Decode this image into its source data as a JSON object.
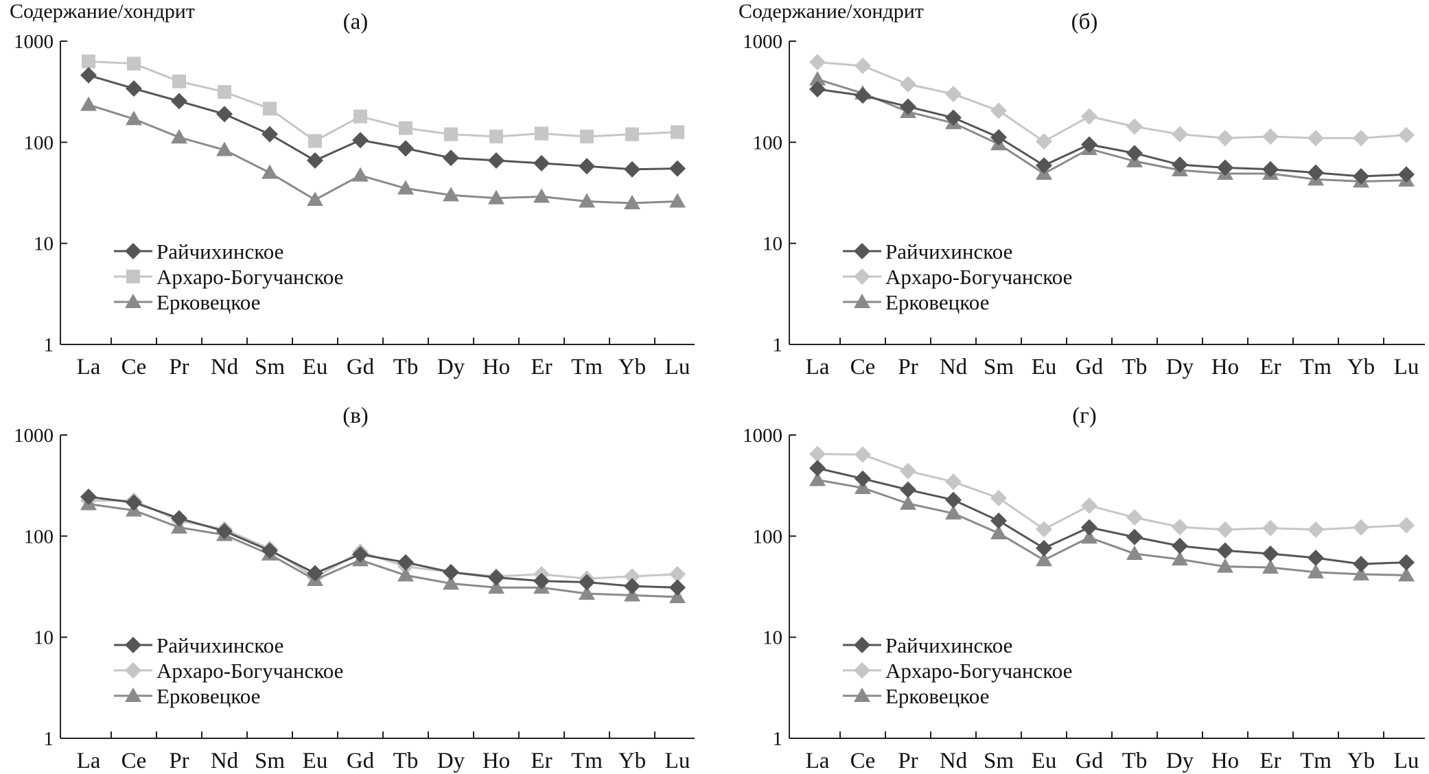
{
  "ylabel": "Содержание/хондрит",
  "colors": {
    "Райчихинское": "#555555",
    "Архаро-Богучанское": "#c6c6c6",
    "Ерковецкое": "#8a8a8a"
  },
  "chart_data": [
    {
      "type": "line",
      "title": "(а)",
      "ylabel": "Содержание/хондрит",
      "yscale": "log",
      "ylim": [
        1,
        1000
      ],
      "yticks": [
        "1",
        "10",
        "100",
        "1000"
      ],
      "legend": "center-left",
      "categories": [
        "La",
        "Ce",
        "Pr",
        "Nd",
        "Sm",
        "Eu",
        "Gd",
        "Tb",
        "Dy",
        "Ho",
        "Er",
        "Tm",
        "Yb",
        "Lu"
      ],
      "series": [
        {
          "name": "Райчихинское",
          "marker": "diamond",
          "values": [
            460,
            340,
            255,
            190,
            120,
            66,
            105,
            87,
            70,
            66,
            62,
            58,
            54,
            55
          ]
        },
        {
          "name": "Архаро-Богучанское",
          "marker": "square",
          "values": [
            630,
            600,
            400,
            315,
            215,
            103,
            180,
            138,
            120,
            114,
            122,
            114,
            120,
            126
          ]
        },
        {
          "name": "Ерковецкое",
          "marker": "triangle",
          "values": [
            235,
            170,
            112,
            84,
            50,
            27,
            47,
            35,
            30,
            28,
            29,
            26,
            25,
            26
          ]
        }
      ]
    },
    {
      "type": "line",
      "title": "(б)",
      "ylabel": "Содержание/хондрит",
      "yscale": "log",
      "ylim": [
        1,
        1000
      ],
      "yticks": [
        "1",
        "10",
        "100",
        "1000"
      ],
      "legend": "center-left",
      "categories": [
        "La",
        "Ce",
        "Pr",
        "Nd",
        "Sm",
        "Eu",
        "Gd",
        "Tb",
        "Dy",
        "Ho",
        "Er",
        "Tm",
        "Yb",
        "Lu"
      ],
      "series": [
        {
          "name": "Райчихинское",
          "marker": "diamond",
          "values": [
            335,
            290,
            225,
            175,
            112,
            59,
            95,
            78,
            60,
            56,
            54,
            50,
            46,
            48
          ]
        },
        {
          "name": "Архаро-Богучанское",
          "marker": "diamond",
          "values": [
            620,
            570,
            375,
            300,
            205,
            102,
            180,
            143,
            120,
            110,
            114,
            110,
            110,
            118
          ]
        },
        {
          "name": "Ерковецкое",
          "marker": "triangle",
          "values": [
            420,
            305,
            200,
            155,
            96,
            49,
            86,
            65,
            53,
            49,
            49,
            43,
            41,
            42
          ]
        }
      ]
    },
    {
      "type": "line",
      "title": "(в)",
      "yscale": "log",
      "ylim": [
        1,
        1000
      ],
      "yticks": [
        "1",
        "10",
        "100",
        "1000"
      ],
      "legend": "center-left",
      "categories": [
        "La",
        "Ce",
        "Pr",
        "Nd",
        "Sm",
        "Eu",
        "Gd",
        "Tb",
        "Dy",
        "Ho",
        "Er",
        "Tm",
        "Yb",
        "Lu"
      ],
      "series": [
        {
          "name": "Райчихинское",
          "marker": "diamond",
          "values": [
            245,
            215,
            150,
            112,
            72,
            43,
            66,
            55,
            44,
            39,
            36,
            35,
            32,
            31
          ]
        },
        {
          "name": "Архаро-Богучанское",
          "marker": "diamond",
          "values": [
            225,
            225,
            142,
            117,
            75,
            39,
            70,
            50,
            44,
            40,
            42,
            38,
            40,
            42
          ]
        },
        {
          "name": "Ерковецкое",
          "marker": "triangle",
          "values": [
            208,
            180,
            122,
            103,
            66,
            37,
            58,
            41,
            34,
            31,
            31,
            27,
            26,
            25
          ]
        }
      ]
    },
    {
      "type": "line",
      "title": "(г)",
      "yscale": "log",
      "ylim": [
        1,
        1000
      ],
      "yticks": [
        "1",
        "10",
        "100",
        "1000"
      ],
      "legend": "center-left",
      "categories": [
        "La",
        "Ce",
        "Pr",
        "Nd",
        "Sm",
        "Eu",
        "Gd",
        "Tb",
        "Dy",
        "Ho",
        "Er",
        "Tm",
        "Yb",
        "Lu"
      ],
      "series": [
        {
          "name": "Райчихинское",
          "marker": "diamond",
          "values": [
            470,
            370,
            288,
            228,
            142,
            76,
            122,
            98,
            80,
            72,
            67,
            61,
            53,
            55
          ]
        },
        {
          "name": "Архаро-Богучанское",
          "marker": "diamond",
          "values": [
            650,
            640,
            440,
            345,
            238,
            117,
            200,
            153,
            123,
            116,
            120,
            116,
            122,
            128
          ]
        },
        {
          "name": "Ерковецкое",
          "marker": "triangle",
          "values": [
            360,
            300,
            210,
            168,
            107,
            58,
            97,
            67,
            59,
            50,
            49,
            44,
            42,
            41
          ]
        }
      ]
    }
  ]
}
